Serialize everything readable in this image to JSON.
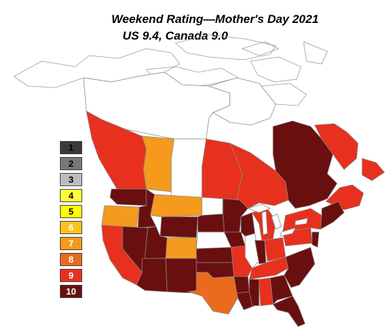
{
  "title": "Weekend Rating—Mother's Day 2021",
  "subtitle": "US 9.4, Canada 9.0",
  "legend": [
    {
      "label": "1",
      "color": "#3a3a3a",
      "text_color": "#000000"
    },
    {
      "label": "2",
      "color": "#777777",
      "text_color": "#000000"
    },
    {
      "label": "3",
      "color": "#bdbdbd",
      "text_color": "#000000"
    },
    {
      "label": "4",
      "color": "#ffff3c",
      "text_color": "#000000"
    },
    {
      "label": "5",
      "color": "#ffff00",
      "text_color": "#000000"
    },
    {
      "label": "6",
      "color": "#ffc21a",
      "text_color": "#ffffff"
    },
    {
      "label": "7",
      "color": "#f59a1c",
      "text_color": "#ffffff"
    },
    {
      "label": "8",
      "color": "#ec6a1e",
      "text_color": "#ffffff"
    },
    {
      "label": "9",
      "color": "#e8301e",
      "text_color": "#ffffff"
    },
    {
      "label": "10",
      "color": "#6a0f0f",
      "text_color": "#ffffff"
    }
  ],
  "colors": {
    "unrated": "#ffffff",
    "outline": "#888888",
    "rating_7": "#f59a1c",
    "rating_8": "#ec6a1e",
    "rating_9": "#e8301e",
    "rating_10": "#6a0f0f"
  }
}
